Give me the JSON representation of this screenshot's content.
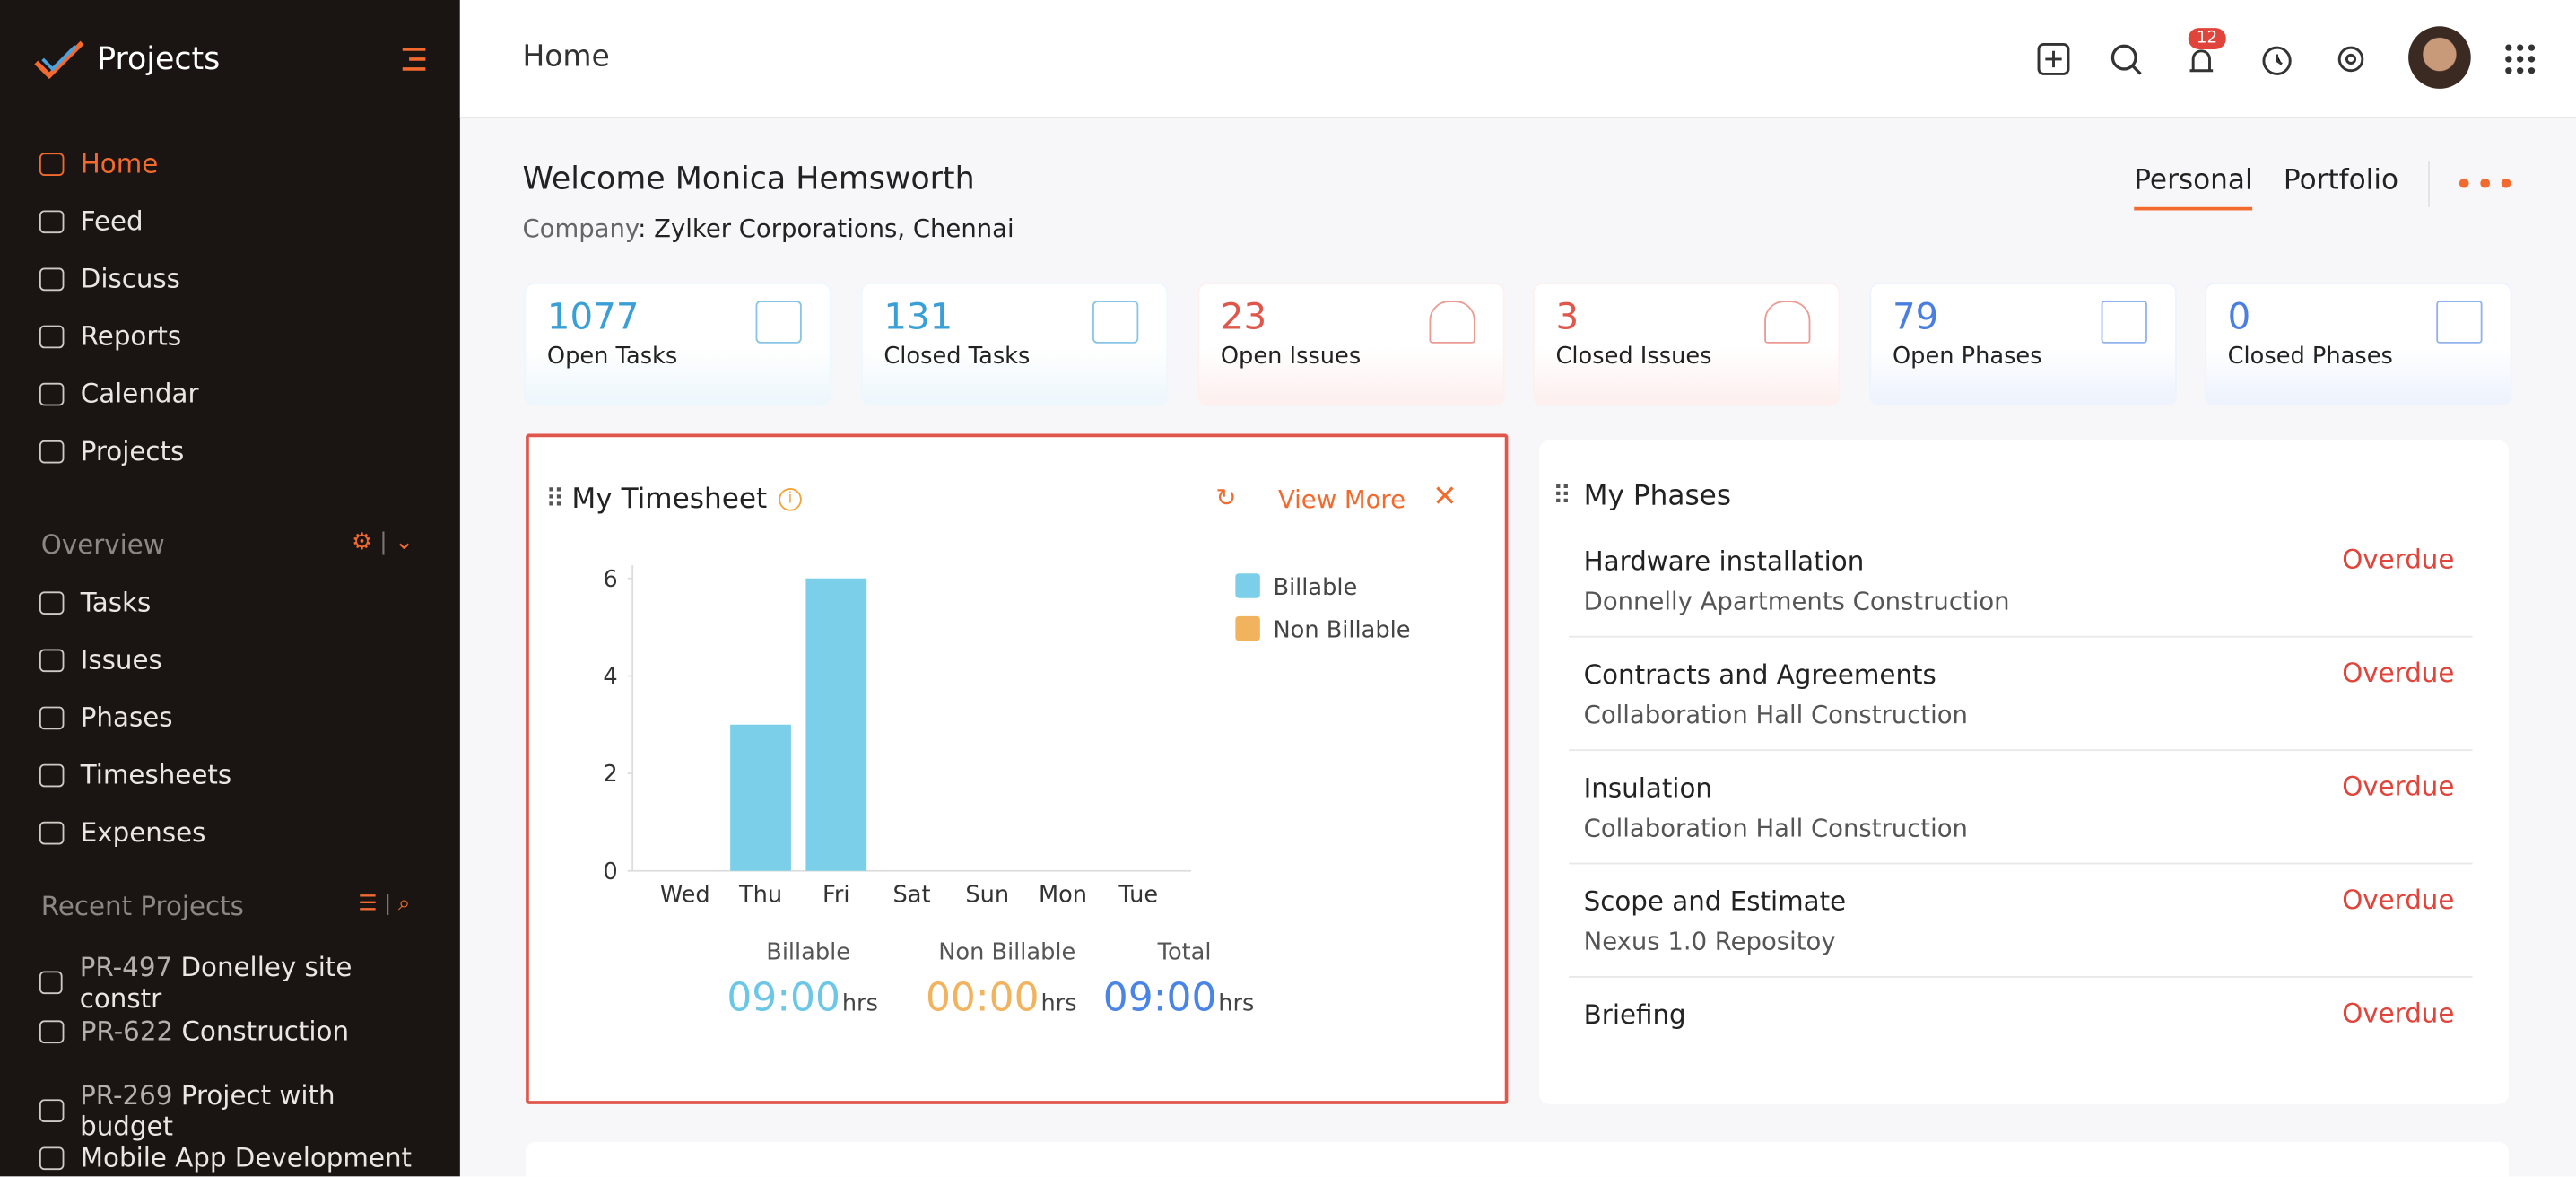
{
  "sidebar": {
    "app_name": "Projects",
    "nav": [
      "Home",
      "Feed",
      "Discuss",
      "Reports",
      "Calendar",
      "Projects"
    ],
    "overview_title": "Overview",
    "overview": [
      "Tasks",
      "Issues",
      "Phases",
      "Timesheets",
      "Expenses"
    ],
    "recent_title": "Recent Projects",
    "recent": [
      {
        "id": "PR-497",
        "name": "Donelley site constr"
      },
      {
        "id": "PR-622",
        "name": "Construction"
      },
      {
        "id": "PR-269",
        "name": "Project with budget"
      },
      {
        "id": "",
        "name": "Mobile App Development"
      }
    ]
  },
  "header": {
    "title": "Home",
    "notification_count": "12"
  },
  "welcome": {
    "title": "Welcome Monica Hemsworth",
    "company_label": "Company",
    "company": "Zylker Corporations, Chennai",
    "tabs": [
      "Personal",
      "Portfolio"
    ]
  },
  "stats": [
    {
      "value": "1077",
      "label": "Open Tasks"
    },
    {
      "value": "131",
      "label": "Closed Tasks"
    },
    {
      "value": "23",
      "label": "Open Issues"
    },
    {
      "value": "3",
      "label": "Closed Issues"
    },
    {
      "value": "79",
      "label": "Open Phases"
    },
    {
      "value": "0",
      "label": "Closed Phases"
    }
  ],
  "timesheet": {
    "title": "My Timesheet",
    "view_more": "View More",
    "unit": "hrs",
    "summary": [
      {
        "label": "Billable",
        "value": "09:00"
      },
      {
        "label": "Non Billable",
        "value": "00:00"
      },
      {
        "label": "Total",
        "value": "09:00"
      }
    ]
  },
  "chart_data": {
    "type": "bar",
    "categories": [
      "Wed",
      "Thu",
      "Fri",
      "Sat",
      "Sun",
      "Mon",
      "Tue"
    ],
    "series": [
      {
        "name": "Billable",
        "color": "#7ccfe8",
        "values": [
          0,
          3,
          6,
          0,
          0,
          0,
          0
        ]
      },
      {
        "name": "Non Billable",
        "color": "#f2b35e",
        "values": [
          0,
          0,
          0,
          0,
          0,
          0,
          0
        ]
      }
    ],
    "ylim": [
      0,
      6
    ],
    "yticks": [
      0,
      2,
      4,
      6
    ],
    "stacked": true
  },
  "phases": {
    "title": "My Phases",
    "items": [
      {
        "name": "Hardware installation",
        "project": "Donnelly Apartments Construction",
        "status": "Overdue"
      },
      {
        "name": "Contracts and Agreements",
        "project": "Collaboration Hall Construction",
        "status": "Overdue"
      },
      {
        "name": "Insulation",
        "project": "Collaboration Hall Construction",
        "status": "Overdue"
      },
      {
        "name": "Scope and Estimate",
        "project": "Nexus 1.0 Repositoy",
        "status": "Overdue"
      },
      {
        "name": "Briefing",
        "status": "Overdue"
      }
    ]
  }
}
